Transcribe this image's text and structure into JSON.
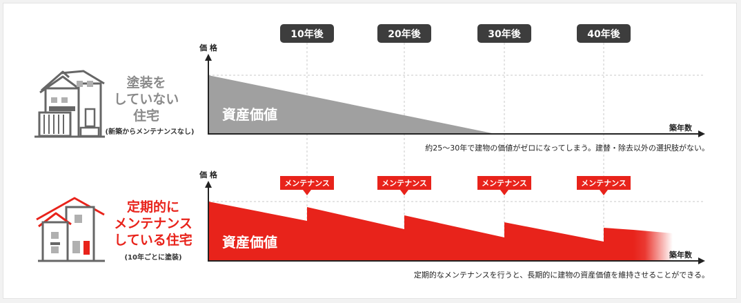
{
  "timeline": {
    "labels": [
      "10年後",
      "20年後",
      "30年後",
      "40年後"
    ]
  },
  "top": {
    "heading_lines": [
      "塗装を",
      "していない",
      "住宅"
    ],
    "note": "(新築からメンテナンスなし)",
    "axis_y": "価 格",
    "axis_x": "築年数",
    "area_label": "資産価値",
    "caption": "約25～30年で建物の価値がゼロになってしまう。建替・除去以外の選択肢がない。",
    "color": "#a0a0a0"
  },
  "bottom": {
    "heading_lines": [
      "定期的に",
      "メンテナンス",
      "している住宅"
    ],
    "note": "(10年ごとに塗装)",
    "axis_y": "価 格",
    "axis_x": "築年数",
    "area_label": "資産価値",
    "maintenance_label": "メンテナンス",
    "caption": "定期的なメンテナンスを行うと、長期的に建物の資産価値を維持させることができる。",
    "color": "#e8231b"
  },
  "colors": {
    "badge": "#3d3d3d",
    "axis": "#222222",
    "gray_text": "#8a8a8a",
    "red": "#e8231b"
  }
}
